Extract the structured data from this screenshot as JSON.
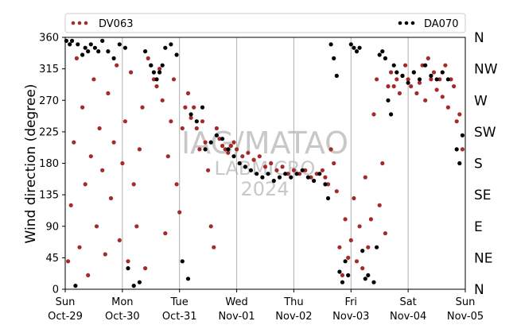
{
  "chart_data": {
    "type": "scatter",
    "title": "",
    "xlabel": "",
    "ylabel": "Wind direction (degree)",
    "ylim": [
      0,
      360
    ],
    "y_ticks": [
      0,
      45,
      90,
      135,
      180,
      225,
      270,
      315,
      360
    ],
    "x_range": [
      "2023-10-29",
      "2023-11-05"
    ],
    "x_ticks": [
      {
        "line1": "Sun",
        "line2": "Oct-29"
      },
      {
        "line1": "Mon",
        "line2": "Oct-30"
      },
      {
        "line1": "Tue",
        "line2": "Oct-31"
      },
      {
        "line1": "Wed",
        "line2": "Nov-01"
      },
      {
        "line1": "Thu",
        "line2": "Nov-02"
      },
      {
        "line1": "Fri",
        "line2": "Nov-03"
      },
      {
        "line1": "Sat",
        "line2": "Nov-04"
      },
      {
        "line1": "Sun",
        "line2": "Nov-05"
      }
    ],
    "compass_labels": [
      "N",
      "NE",
      "E",
      "SE",
      "S",
      "SW",
      "W",
      "NW",
      "N"
    ],
    "grid": "vertical",
    "legend_placement": "top",
    "watermark": {
      "line1": "IAG/MATAO",
      "line2": "LABMICRO",
      "line3": "2024"
    },
    "series": [
      {
        "name": "DV063",
        "color": "#a52a2a",
        "points": [
          [
            0.05,
            40
          ],
          [
            0.1,
            120
          ],
          [
            0.15,
            210
          ],
          [
            0.2,
            330
          ],
          [
            0.25,
            60
          ],
          [
            0.3,
            260
          ],
          [
            0.35,
            150
          ],
          [
            0.4,
            20
          ],
          [
            0.45,
            190
          ],
          [
            0.5,
            300
          ],
          [
            0.55,
            90
          ],
          [
            0.6,
            230
          ],
          [
            0.65,
            170
          ],
          [
            0.7,
            50
          ],
          [
            0.75,
            280
          ],
          [
            0.8,
            130
          ],
          [
            0.85,
            210
          ],
          [
            0.9,
            320
          ],
          [
            0.95,
            70
          ],
          [
            1.0,
            180
          ],
          [
            1.05,
            240
          ],
          [
            1.1,
            40
          ],
          [
            1.15,
            310
          ],
          [
            1.2,
            150
          ],
          [
            1.25,
            90
          ],
          [
            1.3,
            200
          ],
          [
            1.35,
            260
          ],
          [
            1.4,
            30
          ],
          [
            1.45,
            330
          ],
          [
            1.5,
            320
          ],
          [
            1.55,
            300
          ],
          [
            1.6,
            290
          ],
          [
            1.65,
            315
          ],
          [
            1.7,
            270
          ],
          [
            1.75,
            80
          ],
          [
            1.8,
            190
          ],
          [
            1.85,
            240
          ],
          [
            1.9,
            300
          ],
          [
            1.95,
            150
          ],
          [
            2.0,
            110
          ],
          [
            2.05,
            230
          ],
          [
            2.1,
            260
          ],
          [
            2.15,
            280
          ],
          [
            2.2,
            245
          ],
          [
            2.25,
            260
          ],
          [
            2.3,
            230
          ],
          [
            2.35,
            200
          ],
          [
            2.4,
            240
          ],
          [
            2.45,
            210
          ],
          [
            2.5,
            170
          ],
          [
            2.55,
            90
          ],
          [
            2.6,
            60
          ],
          [
            2.65,
            230
          ],
          [
            2.7,
            215
          ],
          [
            2.75,
            205
          ],
          [
            2.8,
            200
          ],
          [
            2.85,
            195
          ],
          [
            2.9,
            205
          ],
          [
            2.95,
            210
          ],
          [
            3.0,
            200
          ],
          [
            3.1,
            190
          ],
          [
            3.2,
            195
          ],
          [
            3.3,
            185
          ],
          [
            3.4,
            190
          ],
          [
            3.5,
            175
          ],
          [
            3.6,
            180
          ],
          [
            3.7,
            170
          ],
          [
            3.8,
            175
          ],
          [
            3.9,
            165
          ],
          [
            4.0,
            170
          ],
          [
            4.1,
            165
          ],
          [
            4.2,
            170
          ],
          [
            4.3,
            160
          ],
          [
            4.4,
            165
          ],
          [
            4.5,
            170
          ],
          [
            4.55,
            160
          ],
          [
            4.6,
            150
          ],
          [
            4.65,
            200
          ],
          [
            4.7,
            180
          ],
          [
            4.75,
            140
          ],
          [
            4.8,
            60
          ],
          [
            4.85,
            20
          ],
          [
            4.9,
            100
          ],
          [
            4.95,
            45
          ],
          [
            5.0,
            70
          ],
          [
            5.05,
            130
          ],
          [
            5.1,
            40
          ],
          [
            5.15,
            90
          ],
          [
            5.2,
            30
          ],
          [
            5.25,
            160
          ],
          [
            5.3,
            60
          ],
          [
            5.35,
            100
          ],
          [
            5.4,
            250
          ],
          [
            5.45,
            300
          ],
          [
            5.5,
            120
          ],
          [
            5.55,
            180
          ],
          [
            5.6,
            80
          ],
          [
            5.65,
            290
          ],
          [
            5.7,
            310
          ],
          [
            5.75,
            290
          ],
          [
            5.8,
            300
          ],
          [
            5.85,
            280
          ],
          [
            5.9,
            305
          ],
          [
            5.95,
            320
          ],
          [
            6.0,
            300
          ],
          [
            6.05,
            290
          ],
          [
            6.1,
            310
          ],
          [
            6.15,
            280
          ],
          [
            6.2,
            295
          ],
          [
            6.25,
            320
          ],
          [
            6.3,
            270
          ],
          [
            6.35,
            330
          ],
          [
            6.4,
            300
          ],
          [
            6.45,
            310
          ],
          [
            6.5,
            285
          ],
          [
            6.55,
            300
          ],
          [
            6.6,
            275
          ],
          [
            6.65,
            320
          ],
          [
            6.7,
            260
          ],
          [
            6.75,
            300
          ],
          [
            6.8,
            290
          ],
          [
            6.85,
            240
          ],
          [
            6.9,
            250
          ],
          [
            6.95,
            200
          ]
        ]
      },
      {
        "name": "DA070",
        "color": "#000000",
        "points": [
          [
            0.02,
            355
          ],
          [
            0.08,
            350
          ],
          [
            0.12,
            355
          ],
          [
            0.18,
            5
          ],
          [
            0.22,
            350
          ],
          [
            0.3,
            335
          ],
          [
            0.35,
            345
          ],
          [
            0.4,
            340
          ],
          [
            0.45,
            350
          ],
          [
            0.52,
            345
          ],
          [
            0.58,
            340
          ],
          [
            0.65,
            355
          ],
          [
            0.75,
            340
          ],
          [
            0.85,
            330
          ],
          [
            0.95,
            350
          ],
          [
            1.05,
            345
          ],
          [
            1.1,
            30
          ],
          [
            1.2,
            5
          ],
          [
            1.3,
            10
          ],
          [
            1.4,
            340
          ],
          [
            1.5,
            320
          ],
          [
            1.55,
            310
          ],
          [
            1.6,
            300
          ],
          [
            1.65,
            310
          ],
          [
            1.7,
            320
          ],
          [
            1.75,
            345
          ],
          [
            1.85,
            350
          ],
          [
            1.95,
            335
          ],
          [
            2.05,
            40
          ],
          [
            2.15,
            15
          ],
          [
            2.2,
            250
          ],
          [
            2.3,
            240
          ],
          [
            2.4,
            260
          ],
          [
            2.45,
            200
          ],
          [
            2.55,
            210
          ],
          [
            2.65,
            220
          ],
          [
            2.75,
            215
          ],
          [
            2.85,
            200
          ],
          [
            2.95,
            190
          ],
          [
            3.05,
            180
          ],
          [
            3.15,
            175
          ],
          [
            3.25,
            170
          ],
          [
            3.35,
            165
          ],
          [
            3.45,
            160
          ],
          [
            3.55,
            165
          ],
          [
            3.65,
            155
          ],
          [
            3.75,
            160
          ],
          [
            3.85,
            165
          ],
          [
            3.95,
            160
          ],
          [
            4.05,
            165
          ],
          [
            4.15,
            170
          ],
          [
            4.25,
            160
          ],
          [
            4.35,
            155
          ],
          [
            4.45,
            165
          ],
          [
            4.55,
            150
          ],
          [
            4.6,
            130
          ],
          [
            4.65,
            350
          ],
          [
            4.7,
            330
          ],
          [
            4.75,
            305
          ],
          [
            4.8,
            25
          ],
          [
            4.85,
            10
          ],
          [
            4.9,
            40
          ],
          [
            4.95,
            20
          ],
          [
            5.0,
            350
          ],
          [
            5.05,
            345
          ],
          [
            5.1,
            340
          ],
          [
            5.15,
            345
          ],
          [
            5.2,
            55
          ],
          [
            5.25,
            15
          ],
          [
            5.3,
            20
          ],
          [
            5.4,
            10
          ],
          [
            5.45,
            60
          ],
          [
            5.5,
            335
          ],
          [
            5.55,
            340
          ],
          [
            5.6,
            330
          ],
          [
            5.65,
            270
          ],
          [
            5.7,
            250
          ],
          [
            5.75,
            320
          ],
          [
            5.8,
            310
          ],
          [
            5.9,
            305
          ],
          [
            6.0,
            295
          ],
          [
            6.1,
            310
          ],
          [
            6.2,
            300
          ],
          [
            6.3,
            320
          ],
          [
            6.4,
            305
          ],
          [
            6.5,
            300
          ],
          [
            6.6,
            310
          ],
          [
            6.7,
            300
          ],
          [
            6.85,
            200
          ],
          [
            6.9,
            180
          ],
          [
            6.95,
            220
          ]
        ]
      }
    ]
  }
}
